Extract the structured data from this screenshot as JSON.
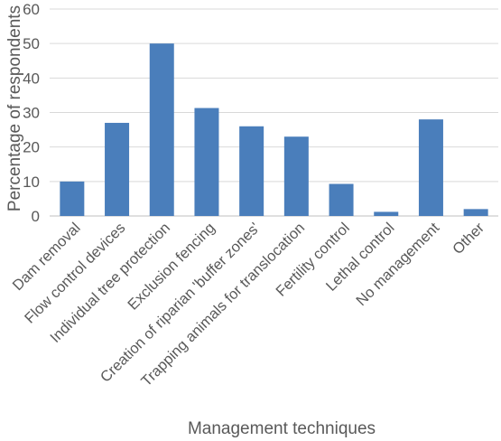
{
  "chart_data": {
    "type": "bar",
    "categories": [
      "Dam removal",
      "Flow control devices",
      "Individual tree protection",
      "Exclusion fencing",
      "Creation of riparian 'buffer zones'",
      "Trapping animals for translocation",
      "Fertility control",
      "Lethal control",
      "No management",
      "Other"
    ],
    "values": [
      10,
      27,
      50,
      31.3,
      26,
      23,
      9.3,
      1.2,
      28,
      2
    ],
    "xlabel": "Management techniques",
    "ylabel": "Percentage of respondents",
    "ylim": [
      0,
      60
    ],
    "yticks": [
      0,
      10,
      20,
      30,
      40,
      50,
      60
    ],
    "bar_color": "#4a7ebb",
    "grid": true,
    "legend": "none"
  }
}
